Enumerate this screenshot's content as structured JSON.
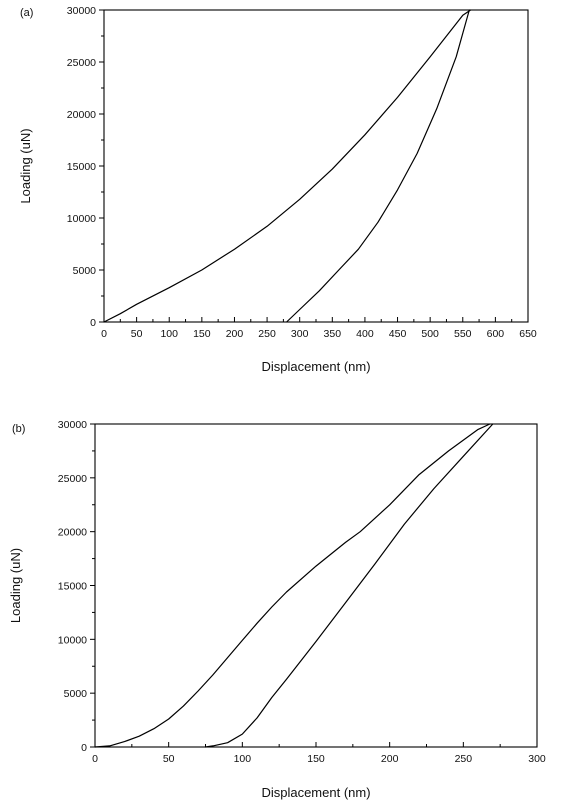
{
  "chart_data": [
    {
      "type": "line",
      "panel_label": "(a)",
      "xlabel": "Displacement (nm)",
      "ylabel": "Loading (uN)",
      "xlim": [
        0,
        650
      ],
      "ylim": [
        0,
        30000
      ],
      "x_ticks": [
        0,
        50,
        100,
        150,
        200,
        250,
        300,
        350,
        400,
        450,
        500,
        550,
        600,
        650
      ],
      "y_ticks": [
        0,
        5000,
        10000,
        15000,
        20000,
        25000,
        30000
      ],
      "grid": false,
      "series": [
        {
          "x": [
            0,
            25,
            50,
            100,
            150,
            200,
            250,
            300,
            350,
            400,
            450,
            500,
            550,
            562
          ],
          "y": [
            0,
            800,
            1700,
            3300,
            5000,
            7000,
            9200,
            11800,
            14700,
            18000,
            21600,
            25500,
            29500,
            30000
          ]
        },
        {
          "x": [
            280,
            300,
            330,
            360,
            390,
            420,
            450,
            480,
            510,
            540,
            560
          ],
          "y": [
            0,
            1200,
            3000,
            5000,
            7000,
            9600,
            12700,
            16200,
            20500,
            25500,
            30000
          ]
        }
      ]
    },
    {
      "type": "line",
      "panel_label": "(b)",
      "xlabel": "Displacement (nm)",
      "ylabel": "Loading (uN)",
      "xlim": [
        0,
        300
      ],
      "ylim": [
        0,
        30000
      ],
      "x_ticks": [
        0,
        50,
        100,
        150,
        200,
        250,
        300
      ],
      "y_ticks": [
        0,
        5000,
        10000,
        15000,
        20000,
        25000,
        30000
      ],
      "grid": false,
      "series": [
        {
          "x": [
            0,
            10,
            20,
            30,
            40,
            50,
            60,
            70,
            80,
            90,
            100,
            110,
            120,
            130,
            150,
            170,
            180,
            200,
            220,
            240,
            260,
            268
          ],
          "y": [
            0,
            100,
            500,
            1000,
            1700,
            2600,
            3800,
            5200,
            6700,
            8300,
            9900,
            11500,
            13000,
            14400,
            16800,
            19000,
            20000,
            22500,
            25300,
            27500,
            29500,
            30000
          ]
        },
        {
          "x": [
            75,
            80,
            90,
            100,
            110,
            120,
            130,
            150,
            170,
            190,
            210,
            230,
            250,
            270
          ],
          "y": [
            0,
            100,
            400,
            1200,
            2700,
            4600,
            6300,
            9800,
            13400,
            17000,
            20700,
            24000,
            27000,
            30000
          ]
        }
      ]
    }
  ]
}
